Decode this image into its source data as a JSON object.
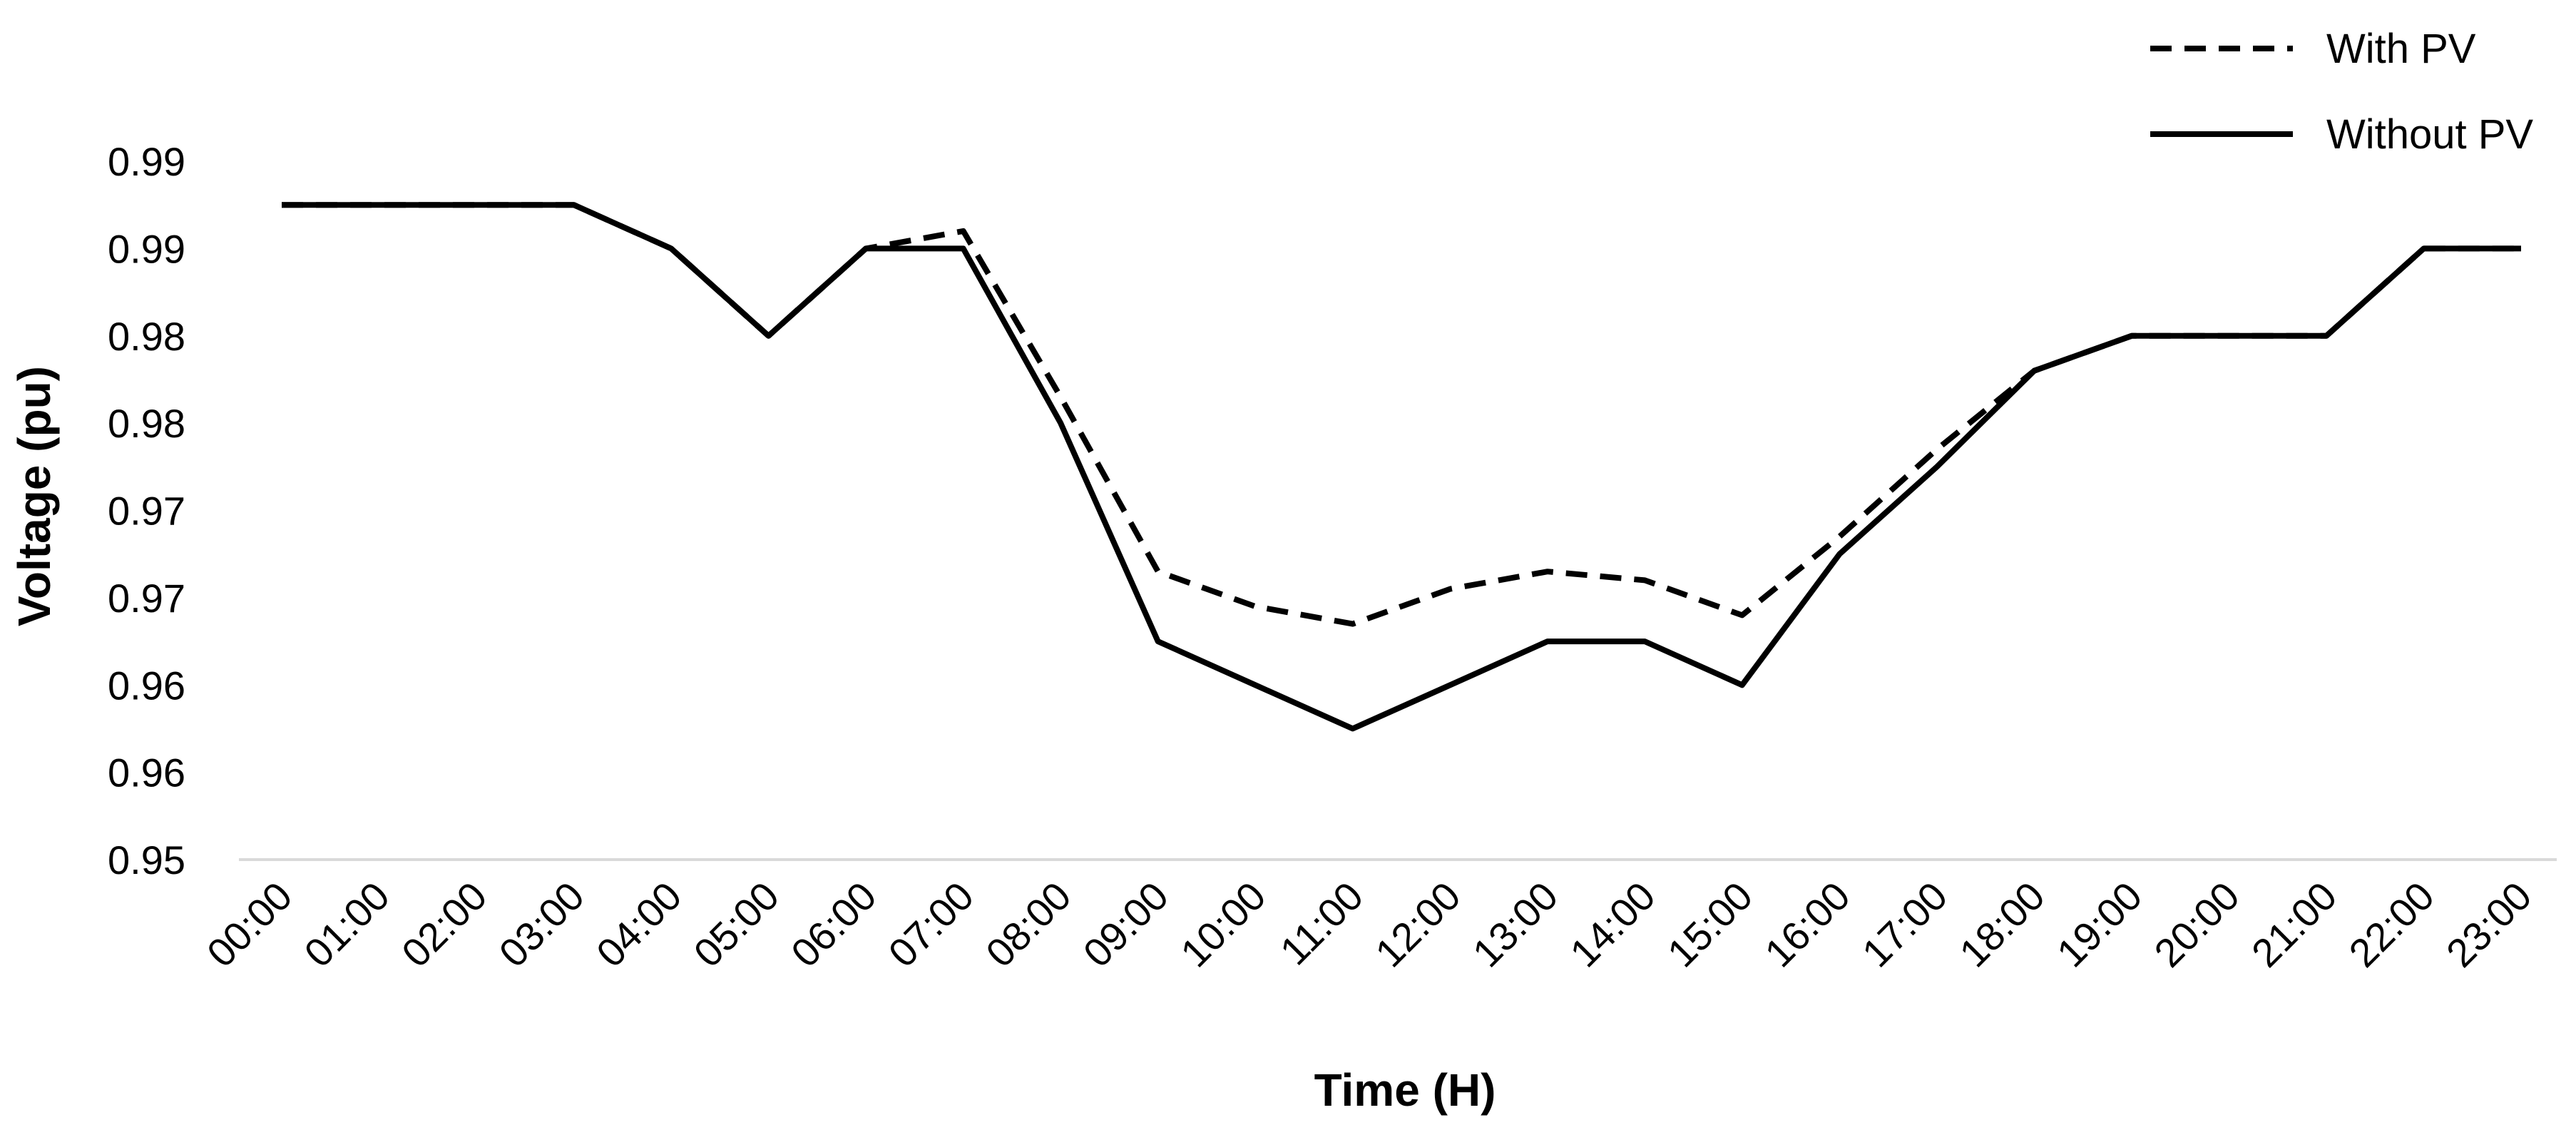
{
  "chart_data": {
    "type": "line",
    "title": "",
    "xlabel": "Time (H)",
    "ylabel": "Voltage (pu)",
    "categories": [
      "00:00",
      "01:00",
      "02:00",
      "03:00",
      "04:00",
      "05:00",
      "06:00",
      "07:00",
      "08:00",
      "09:00",
      "10:00",
      "11:00",
      "12:00",
      "13:00",
      "14:00",
      "15:00",
      "16:00",
      "17:00",
      "18:00",
      "19:00",
      "20:00",
      "21:00",
      "22:00",
      "23:00"
    ],
    "y_tick_labels": [
      "0.95",
      "0.96",
      "0.96",
      "0.97",
      "0.97",
      "0.98",
      "0.98",
      "0.99",
      "0.99"
    ],
    "ylim": [
      0.95,
      0.99
    ],
    "grid": false,
    "legend_position": "top-right",
    "series": [
      {
        "name": "With PV",
        "style": "dashed",
        "color": "#000000",
        "values": [
          0.9875,
          0.9875,
          0.9875,
          0.9875,
          0.985,
          0.98,
          0.985,
          0.986,
          0.9765,
          0.9665,
          0.9645,
          0.9635,
          0.9655,
          0.9665,
          0.966,
          0.964,
          0.9685,
          0.9735,
          0.978,
          0.98,
          0.98,
          0.98,
          0.985,
          0.985
        ]
      },
      {
        "name": "Without PV",
        "style": "solid",
        "color": "#000000",
        "values": [
          0.9875,
          0.9875,
          0.9875,
          0.9875,
          0.985,
          0.98,
          0.985,
          0.985,
          0.975,
          0.9625,
          0.96,
          0.9575,
          0.96,
          0.9625,
          0.9625,
          0.96,
          0.9675,
          0.9725,
          0.978,
          0.98,
          0.98,
          0.98,
          0.985,
          0.985
        ]
      }
    ]
  }
}
